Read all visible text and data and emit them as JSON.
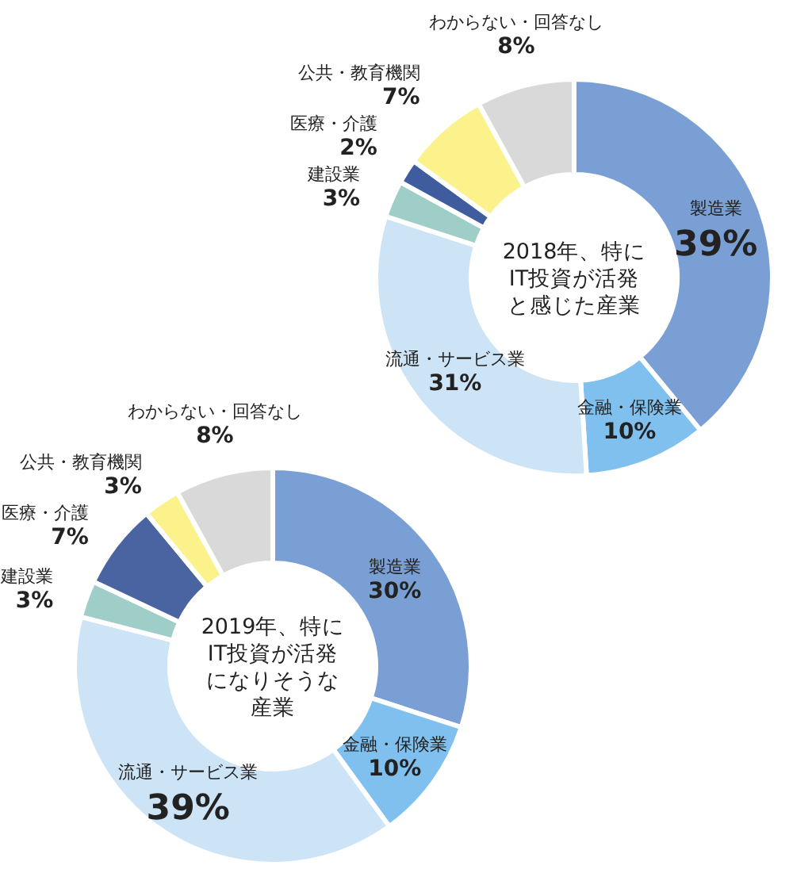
{
  "chart_data": [
    {
      "type": "donut",
      "title": "2018年、特にIT投資が活発と感じた産業",
      "categories": [
        "製造業",
        "金融・保険業",
        "流通・サービス業",
        "建設業",
        "医療・介護",
        "公共・教育機関",
        "わからない・回答なし"
      ],
      "values": [
        39,
        10,
        31,
        3,
        2,
        7,
        8
      ],
      "value_labels": [
        "39%",
        "10%",
        "31%",
        "3%",
        "2%",
        "7%",
        "8%"
      ],
      "colors": [
        "#7a9fd4",
        "#80c0ee",
        "#cde3f6",
        "#9ecec7",
        "#3f5d9e",
        "#fbf28c",
        "#d9d9d9"
      ]
    },
    {
      "type": "donut",
      "title": "2019年、特にIT投資が活発になりそうな産業",
      "categories": [
        "製造業",
        "金融・保険業",
        "流通・サービス業",
        "建設業",
        "医療・介護",
        "公共・教育機関",
        "わからない・回答なし"
      ],
      "values": [
        30,
        10,
        39,
        3,
        7,
        3,
        8
      ],
      "value_labels": [
        "30%",
        "10%",
        "39%",
        "3%",
        "7%",
        "3%",
        "8%"
      ],
      "colors": [
        "#7a9fd4",
        "#80c0ee",
        "#cde3f6",
        "#9ecec7",
        "#4a64a2",
        "#fbf28c",
        "#d9d9d9"
      ]
    }
  ]
}
